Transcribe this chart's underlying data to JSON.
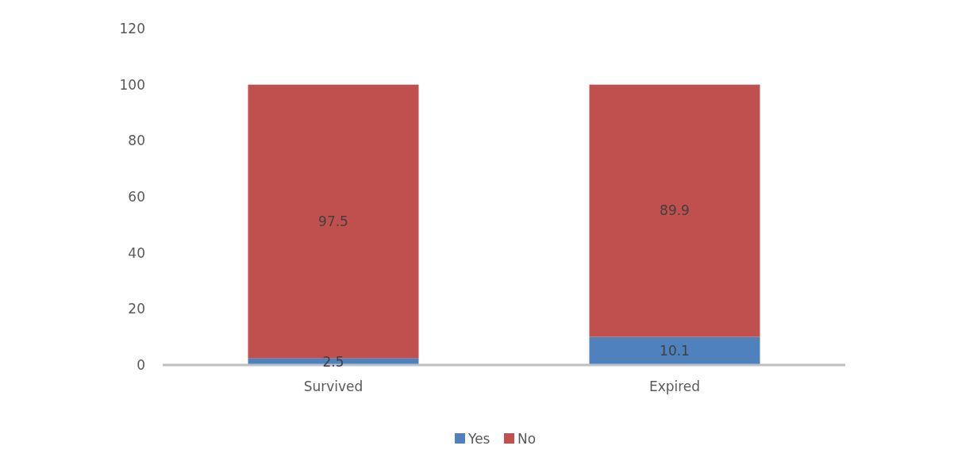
{
  "chart_data": {
    "type": "bar",
    "stacked": true,
    "categories": [
      "Survived",
      "Expired"
    ],
    "series": [
      {
        "name": "Yes",
        "color": "#4f81bd",
        "values": [
          2.5,
          10.1
        ]
      },
      {
        "name": "No",
        "color": "#c0504d",
        "values": [
          97.5,
          89.9
        ]
      }
    ],
    "ylim": [
      0,
      120
    ],
    "yticks": [
      0,
      20,
      40,
      60,
      80,
      100,
      120
    ],
    "data_labels": true,
    "legend": "bottom",
    "grid": false
  }
}
